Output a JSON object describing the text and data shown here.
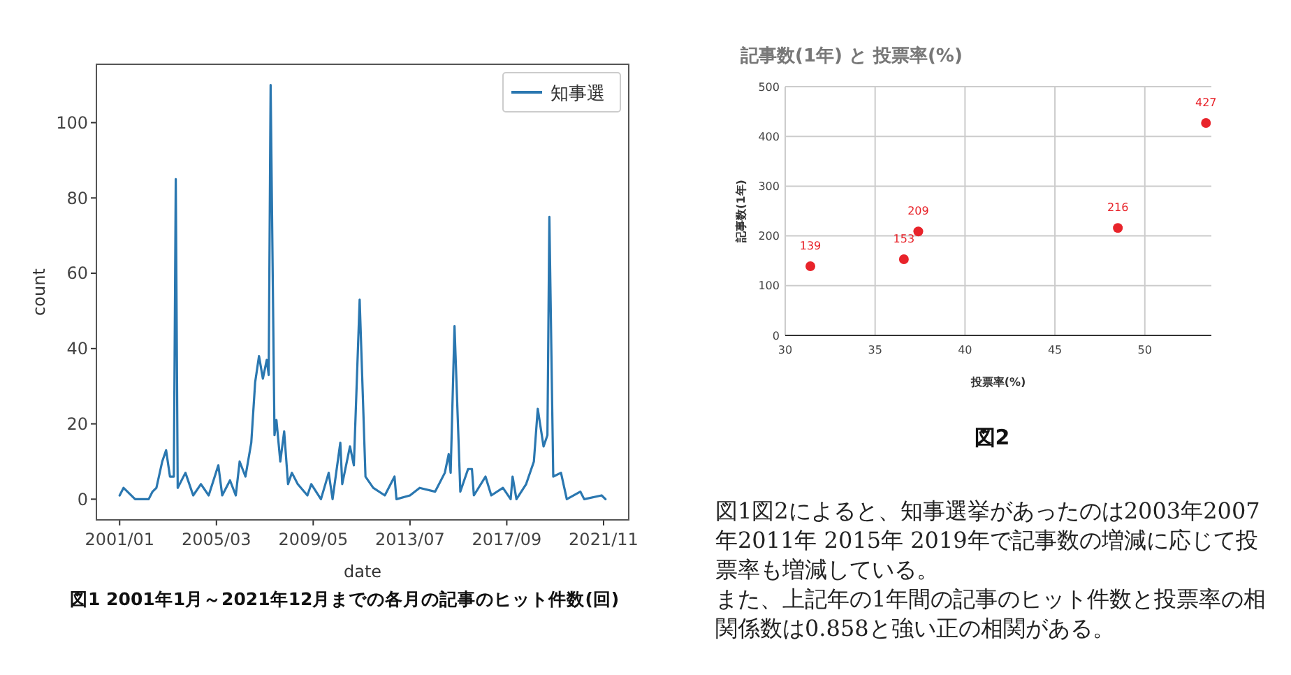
{
  "chart_data": [
    {
      "type": "line",
      "xlabel": "date",
      "ylabel": "count",
      "legend": "top right",
      "grid": false,
      "x": [
        "2001-01",
        "2001-03",
        "2001-09",
        "2002-04",
        "2002-06",
        "2002-08",
        "2002-11",
        "2003-01",
        "2003-03",
        "2003-05",
        "2003-06",
        "2003-07",
        "2003-11",
        "2004-03",
        "2004-07",
        "2004-11",
        "2005-04",
        "2005-06",
        "2005-10",
        "2006-01",
        "2006-03",
        "2006-06",
        "2006-09",
        "2006-11",
        "2007-01",
        "2007-03",
        "2007-05",
        "2007-06",
        "2007-07",
        "2007-09",
        "2007-10",
        "2007-12",
        "2008-02",
        "2008-04",
        "2008-06",
        "2008-09",
        "2009-02",
        "2009-04",
        "2009-09",
        "2010-01",
        "2010-03",
        "2010-07",
        "2010-08",
        "2010-12",
        "2011-02",
        "2011-05",
        "2011-08",
        "2011-12",
        "2012-06",
        "2012-11",
        "2012-12",
        "2013-07",
        "2013-12",
        "2014-08",
        "2015-01",
        "2015-03",
        "2015-04",
        "2015-06",
        "2015-09",
        "2016-01",
        "2016-03",
        "2016-04",
        "2016-10",
        "2017-01",
        "2017-07",
        "2017-11",
        "2017-12",
        "2018-02",
        "2018-07",
        "2018-11",
        "2019-01",
        "2019-04",
        "2019-06",
        "2019-07",
        "2019-09",
        "2020-01",
        "2020-04",
        "2020-11",
        "2021-01",
        "2021-10",
        "2021-12"
      ],
      "series": [
        {
          "name": "知事選",
          "color": "#2a77b0",
          "values": [
            1,
            3,
            0,
            0,
            2,
            3,
            10,
            13,
            6,
            6,
            85,
            3,
            7,
            1,
            4,
            1,
            9,
            1,
            5,
            1,
            10,
            6,
            15,
            31,
            38,
            32,
            37,
            33,
            110,
            17,
            21,
            10,
            18,
            4,
            7,
            4,
            1,
            4,
            0,
            7,
            0,
            15,
            4,
            14,
            9,
            53,
            6,
            3,
            1,
            6,
            0,
            1,
            3,
            2,
            7,
            12,
            7,
            46,
            2,
            8,
            8,
            1,
            6,
            1,
            3,
            0,
            6,
            0,
            4,
            10,
            24,
            14,
            17,
            75,
            6,
            7,
            0,
            2,
            0,
            1,
            0
          ]
        }
      ],
      "xlim": [
        "2000-01",
        "2022-12"
      ],
      "xticks": [
        {
          "value": "2001-01",
          "label": "2001/01"
        },
        {
          "value": "2005-03",
          "label": "2005/03"
        },
        {
          "value": "2009-05",
          "label": "2009/05"
        },
        {
          "value": "2013-07",
          "label": "2013/07"
        },
        {
          "value": "2017-09",
          "label": "2017/09"
        },
        {
          "value": "2021-11",
          "label": "2021/11"
        }
      ],
      "ylim": [
        -5.5,
        115.5
      ],
      "yticks": [
        0,
        20,
        40,
        60,
        80,
        100
      ],
      "annotations": [
        "図1 2001年1月～2021年12月までの各月の記事のヒット件数(回)"
      ]
    },
    {
      "type": "scatter",
      "title": "記事数(1年) と 投票率(%)",
      "xlabel": "投票率(%)",
      "ylabel": "記事数(1年)",
      "grid": true,
      "data_labels": true,
      "legend": false,
      "x": [
        31.4,
        36.6,
        37.4,
        48.5,
        53.4
      ],
      "series": [
        {
          "color": "#e8232a",
          "values": [
            139,
            153,
            209,
            216,
            427
          ]
        }
      ],
      "xlim": [
        30,
        53.7
      ],
      "xticks": [
        30,
        35,
        40,
        45,
        50
      ],
      "ylim": [
        0,
        500
      ],
      "yticks": [
        0,
        100,
        200,
        300,
        400,
        500
      ],
      "annotations": [
        "図2",
        "図1図2によると、知事選挙があったのは2003年2007 年2011年 2015年 2019年で記事数の増減に応じて投票率も増減している。",
        "また、上記年の1年間の記事のヒット件数と投票率の相関係数は0.858と強い正の相関がある。"
      ]
    }
  ]
}
